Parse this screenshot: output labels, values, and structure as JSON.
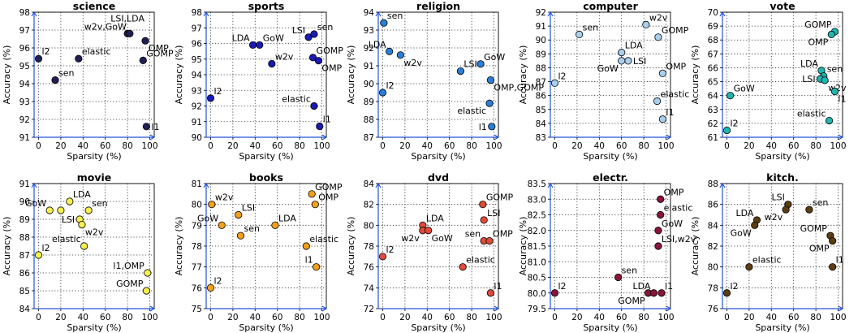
{
  "chart_data": [
    {
      "type": "scatter",
      "title": "science",
      "xlabel": "Sparsity (%)",
      "ylabel": "Accuracy (%)",
      "xlim": [
        -4,
        104
      ],
      "ylim": [
        91,
        98
      ],
      "xticks": [
        0,
        20,
        40,
        60,
        80,
        100
      ],
      "yticks": [
        91,
        92,
        93,
        94,
        95,
        96,
        97,
        98
      ],
      "color": "#1f1f55",
      "grid": true,
      "points": [
        {
          "label": "l2",
          "x": 0,
          "y": 95.4,
          "lp": "tr"
        },
        {
          "label": "sen",
          "x": 15,
          "y": 94.2,
          "lp": "tr"
        },
        {
          "label": "elastic",
          "x": 36,
          "y": 95.4,
          "lp": "tr"
        },
        {
          "label": "LSI,LDA",
          "x": 80,
          "y": 96.8,
          "lp": "above"
        },
        {
          "label": "w2v,GoW",
          "x": 82,
          "y": 96.8,
          "lp": "tl"
        },
        {
          "label": "OMP",
          "x": 96,
          "y": 96.4,
          "lp": "br"
        },
        {
          "label": "GOMP",
          "x": 94,
          "y": 95.3,
          "lp": "tr"
        },
        {
          "label": "l1",
          "x": 97,
          "y": 91.6,
          "lp": "r"
        }
      ]
    },
    {
      "type": "scatter",
      "title": "sports",
      "xlabel": "Sparsity (%)",
      "ylabel": "Accuracy (%)",
      "xlim": [
        -4,
        104
      ],
      "ylim": [
        90,
        98
      ],
      "xticks": [
        0,
        20,
        40,
        60,
        80,
        100
      ],
      "yticks": [
        90,
        91,
        92,
        93,
        94,
        95,
        96,
        97,
        98
      ],
      "color": "#1a1ab5",
      "grid": true,
      "points": [
        {
          "label": "l2",
          "x": 0,
          "y": 92.5,
          "lp": "tr"
        },
        {
          "label": "LDA",
          "x": 38,
          "y": 95.9,
          "lp": "tl"
        },
        {
          "label": "GoW",
          "x": 44,
          "y": 95.9,
          "lp": "tr"
        },
        {
          "label": "w2v",
          "x": 55,
          "y": 94.7,
          "lp": "tr"
        },
        {
          "label": "LSI",
          "x": 88,
          "y": 96.4,
          "lp": "tl"
        },
        {
          "label": "sen",
          "x": 93,
          "y": 96.6,
          "lp": "tr"
        },
        {
          "label": "GOMP",
          "x": 92,
          "y": 95.1,
          "lp": "tr"
        },
        {
          "label": "OMP",
          "x": 97,
          "y": 94.9,
          "lp": "br"
        },
        {
          "label": "elastic",
          "x": 93,
          "y": 92.0,
          "lp": "tl"
        },
        {
          "label": "l1",
          "x": 98,
          "y": 90.7,
          "lp": "tr"
        }
      ]
    },
    {
      "type": "scatter",
      "title": "religion",
      "xlabel": "Sparsity (%)",
      "ylabel": "Accuracy (%)",
      "xlim": [
        -4,
        104
      ],
      "ylim": [
        87,
        94
      ],
      "xticks": [
        0,
        20,
        40,
        60,
        80,
        100
      ],
      "yticks": [
        87,
        88,
        89,
        90,
        91,
        92,
        93,
        94
      ],
      "color": "#2a7fd6",
      "grid": true,
      "points": [
        {
          "label": "sen",
          "x": 1,
          "y": 93.4,
          "lp": "tr"
        },
        {
          "label": "LDA",
          "x": 6,
          "y": 91.8,
          "lp": "tl"
        },
        {
          "label": "w2v",
          "x": 16,
          "y": 91.6,
          "lp": "br"
        },
        {
          "label": "l2",
          "x": 0,
          "y": 89.5,
          "lp": "tr"
        },
        {
          "label": "LSI",
          "x": 70,
          "y": 90.7,
          "lp": "tr"
        },
        {
          "label": "GoW",
          "x": 88,
          "y": 91.1,
          "lp": "tr"
        },
        {
          "label": "OMP,GOMP",
          "x": 97,
          "y": 90.2,
          "lp": "br"
        },
        {
          "label": "elastic",
          "x": 96,
          "y": 88.9,
          "lp": "bl"
        },
        {
          "label": "l1",
          "x": 98,
          "y": 87.6,
          "lp": "l"
        }
      ]
    },
    {
      "type": "scatter",
      "title": "computer",
      "xlabel": "Sparsity (%)",
      "ylabel": "Accuracy (%)",
      "xlim": [
        -4,
        104
      ],
      "ylim": [
        83,
        92
      ],
      "xticks": [
        0,
        20,
        40,
        60,
        80,
        100
      ],
      "yticks": [
        83,
        84,
        85,
        86,
        87,
        88,
        89,
        90,
        91,
        92
      ],
      "color": "#a9cfee",
      "grid": true,
      "points": [
        {
          "label": "l2",
          "x": 0,
          "y": 86.9,
          "lp": "tr"
        },
        {
          "label": "sen",
          "x": 22,
          "y": 90.4,
          "lp": "tr"
        },
        {
          "label": "w2v",
          "x": 82,
          "y": 91.1,
          "lp": "tr"
        },
        {
          "label": "GOMP",
          "x": 93,
          "y": 90.2,
          "lp": "tr"
        },
        {
          "label": "LDA",
          "x": 60,
          "y": 89.1,
          "lp": "tr"
        },
        {
          "label": "LSI",
          "x": 66,
          "y": 88.5,
          "lp": "r"
        },
        {
          "label": "GoW",
          "x": 60,
          "y": 88.5,
          "lp": "bl"
        },
        {
          "label": "OMP",
          "x": 97,
          "y": 87.6,
          "lp": "tr"
        },
        {
          "label": "elastic",
          "x": 92,
          "y": 85.6,
          "lp": "tr"
        },
        {
          "label": "l1",
          "x": 97,
          "y": 84.3,
          "lp": "tr"
        }
      ]
    },
    {
      "type": "scatter",
      "title": "vote",
      "xlabel": "Sparsity (%)",
      "ylabel": "Accuracy (%)",
      "xlim": [
        -4,
        104
      ],
      "ylim": [
        61,
        70
      ],
      "xticks": [
        0,
        20,
        40,
        60,
        80,
        100
      ],
      "yticks": [
        61,
        62,
        63,
        64,
        65,
        66,
        67,
        68,
        69,
        70
      ],
      "color": "#1fb5b0",
      "grid": true,
      "points": [
        {
          "label": "GOMP",
          "x": 97,
          "y": 68.6,
          "lp": "tl"
        },
        {
          "label": "OMP",
          "x": 94,
          "y": 68.4,
          "lp": "bl"
        },
        {
          "label": "LDA",
          "x": 85,
          "y": 65.8,
          "lp": "tl"
        },
        {
          "label": "sen",
          "x": 87,
          "y": 65.4,
          "lp": "tr"
        },
        {
          "label": "LSI",
          "x": 84,
          "y": 65.2,
          "lp": "l"
        },
        {
          "label": "w2v",
          "x": 88,
          "y": 65.1,
          "lp": "br"
        },
        {
          "label": "l1",
          "x": 97,
          "y": 64.3,
          "lp": "br"
        },
        {
          "label": "GoW",
          "x": 3,
          "y": 64.0,
          "lp": "tr"
        },
        {
          "label": "elastic",
          "x": 92,
          "y": 62.2,
          "lp": "tl"
        },
        {
          "label": "l2",
          "x": 0,
          "y": 61.5,
          "lp": "tr"
        }
      ]
    },
    {
      "type": "scatter",
      "title": "movie",
      "xlabel": "Sparsity (%)",
      "ylabel": "Accuracy (%)",
      "xlim": [
        -4,
        104
      ],
      "ylim": [
        84,
        91
      ],
      "xticks": [
        0,
        20,
        40,
        60,
        80,
        100
      ],
      "yticks": [
        84,
        85,
        86,
        87,
        88,
        89,
        90,
        91
      ],
      "color": "#f5f04c",
      "grid": true,
      "points": [
        {
          "label": "LDA",
          "x": 28,
          "y": 90.0,
          "lp": "tr"
        },
        {
          "label": "GoW",
          "x": 10,
          "y": 89.5,
          "lp": "tl"
        },
        {
          "label": "",
          "x": 20,
          "y": 89.5,
          "lp": "r"
        },
        {
          "label": "sen",
          "x": 45,
          "y": 89.5,
          "lp": "tr"
        },
        {
          "label": "LSI",
          "x": 37,
          "y": 89.0,
          "lp": "l"
        },
        {
          "label": "w2v",
          "x": 39,
          "y": 88.7,
          "lp": "br"
        },
        {
          "label": "elastic",
          "x": 41,
          "y": 87.5,
          "lp": "tl"
        },
        {
          "label": "l2",
          "x": 0,
          "y": 87.0,
          "lp": "tr"
        },
        {
          "label": "l1,OMP",
          "x": 98,
          "y": 86.0,
          "lp": "tl"
        },
        {
          "label": "GOMP",
          "x": 97,
          "y": 85.0,
          "lp": "tl"
        }
      ]
    },
    {
      "type": "scatter",
      "title": "books",
      "xlabel": "Sparsity (%)",
      "ylabel": "Accuracy (%)",
      "xlim": [
        -4,
        104
      ],
      "ylim": [
        75,
        81
      ],
      "xticks": [
        0,
        20,
        40,
        60,
        80,
        100
      ],
      "yticks": [
        75,
        76,
        77,
        78,
        79,
        80,
        81
      ],
      "color": "#f5a01a",
      "grid": true,
      "points": [
        {
          "label": "w2v",
          "x": 1,
          "y": 80.0,
          "lp": "tr"
        },
        {
          "label": "GOMP",
          "x": 91,
          "y": 80.5,
          "lp": "tr"
        },
        {
          "label": "OMP",
          "x": 94,
          "y": 80.0,
          "lp": "tr"
        },
        {
          "label": "LSI",
          "x": 25,
          "y": 79.5,
          "lp": "tr"
        },
        {
          "label": "GoW",
          "x": 10,
          "y": 79.0,
          "lp": "tl"
        },
        {
          "label": "LDA",
          "x": 58,
          "y": 79.0,
          "lp": "tr"
        },
        {
          "label": "sen",
          "x": 27,
          "y": 78.5,
          "lp": "tr"
        },
        {
          "label": "elastic",
          "x": 86,
          "y": 78.0,
          "lp": "tr"
        },
        {
          "label": "l1",
          "x": 95,
          "y": 77.0,
          "lp": "tl"
        },
        {
          "label": "l2",
          "x": 0,
          "y": 76.0,
          "lp": "tr"
        }
      ]
    },
    {
      "type": "scatter",
      "title": "dvd",
      "xlabel": "Sparsity (%)",
      "ylabel": "Accuracy (%)",
      "xlim": [
        -4,
        104
      ],
      "ylim": [
        72,
        84
      ],
      "xticks": [
        0,
        20,
        40,
        60,
        80,
        100
      ],
      "yticks": [
        72,
        74,
        76,
        78,
        80,
        82,
        84
      ],
      "color": "#e24a3a",
      "grid": true,
      "points": [
        {
          "label": "GOMP",
          "x": 90,
          "y": 82.0,
          "lp": "tr"
        },
        {
          "label": "LSI",
          "x": 91,
          "y": 80.5,
          "lp": "tr"
        },
        {
          "label": "LDA",
          "x": 36,
          "y": 80.0,
          "lp": "tr"
        },
        {
          "label": "w2v",
          "x": 36,
          "y": 79.5,
          "lp": "bl"
        },
        {
          "label": "GoW",
          "x": 41,
          "y": 79.5,
          "lp": "br"
        },
        {
          "label": "sen",
          "x": 91,
          "y": 78.5,
          "lp": "tl"
        },
        {
          "label": "OMP",
          "x": 96,
          "y": 78.5,
          "lp": "tr"
        },
        {
          "label": "l2",
          "x": 0,
          "y": 77.0,
          "lp": "tr"
        },
        {
          "label": "elastic",
          "x": 72,
          "y": 76.0,
          "lp": "tr"
        },
        {
          "label": "l1",
          "x": 97,
          "y": 73.5,
          "lp": "tr"
        }
      ]
    },
    {
      "type": "scatter",
      "title": "electr.",
      "xlabel": "Sparsity (%)",
      "ylabel": "Accuracy (%)",
      "xlim": [
        -4,
        104
      ],
      "ylim": [
        79.5,
        83.5
      ],
      "xticks": [
        0,
        20,
        40,
        60,
        80,
        100
      ],
      "yticks": [
        79.5,
        80.0,
        80.5,
        81.0,
        81.5,
        82.0,
        82.5,
        83.0,
        83.5
      ],
      "ytickfmt": 1,
      "color": "#8b1538",
      "grid": true,
      "points": [
        {
          "label": "OMP",
          "x": 95,
          "y": 83.0,
          "lp": "tr"
        },
        {
          "label": "elastic",
          "x": 95,
          "y": 82.5,
          "lp": "tr"
        },
        {
          "label": "GoW",
          "x": 93,
          "y": 82.0,
          "lp": "tr"
        },
        {
          "label": "LSI,w2v",
          "x": 93,
          "y": 81.5,
          "lp": "tr"
        },
        {
          "label": "sen",
          "x": 57,
          "y": 80.5,
          "lp": "tr"
        },
        {
          "label": "l2",
          "x": 0,
          "y": 80.0,
          "lp": "tr"
        },
        {
          "label": "GOMP",
          "x": 84,
          "y": 80.0,
          "lp": "bl"
        },
        {
          "label": "LDA",
          "x": 89,
          "y": 80.0,
          "lp": "tl"
        },
        {
          "label": "l1",
          "x": 96,
          "y": 80.0,
          "lp": "tr"
        }
      ]
    },
    {
      "type": "scatter",
      "title": "kitch.",
      "xlabel": "Sparsity (%)",
      "ylabel": "Accuracy (%)",
      "xlim": [
        -4,
        104
      ],
      "ylim": [
        76,
        88
      ],
      "xticks": [
        0,
        20,
        40,
        60,
        80,
        100
      ],
      "yticks": [
        76,
        78,
        80,
        82,
        84,
        86,
        88
      ],
      "color": "#5c3c10",
      "grid": true,
      "points": [
        {
          "label": "LSI",
          "x": 55,
          "y": 86.0,
          "lp": "tl"
        },
        {
          "label": "sen",
          "x": 74,
          "y": 85.5,
          "lp": "tr"
        },
        {
          "label": "w2v",
          "x": 53,
          "y": 85.5,
          "lp": "bl"
        },
        {
          "label": "LDA",
          "x": 27,
          "y": 84.5,
          "lp": "tl"
        },
        {
          "label": "GoW",
          "x": 25,
          "y": 84.0,
          "lp": "bl"
        },
        {
          "label": "GOMP",
          "x": 93,
          "y": 83.0,
          "lp": "tl"
        },
        {
          "label": "OMP",
          "x": 95,
          "y": 82.5,
          "lp": "bl"
        },
        {
          "label": "elastic",
          "x": 20,
          "y": 80.0,
          "lp": "tr"
        },
        {
          "label": "l1",
          "x": 95,
          "y": 80.0,
          "lp": "tr"
        },
        {
          "label": "l2",
          "x": 0,
          "y": 77.5,
          "lp": "tr"
        }
      ]
    }
  ]
}
